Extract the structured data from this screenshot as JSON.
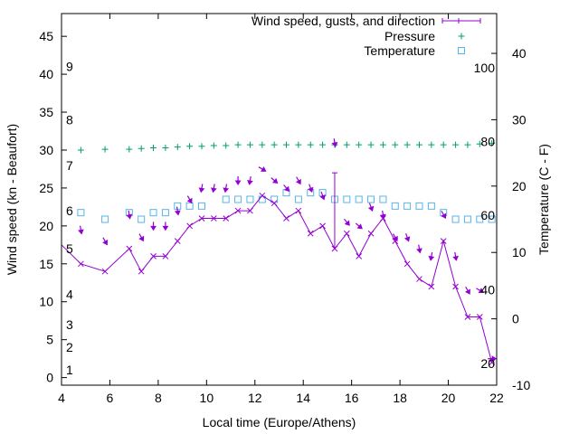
{
  "chart_data": {
    "type": "line",
    "xlabel": "Local time (Europe/Athens)",
    "ylabel_left": "Wind speed (kn - Beaufort)",
    "ylabel_right": "Temperature (C - F)",
    "xlim": [
      4,
      22
    ],
    "ylim_left": [
      -1,
      48
    ],
    "ylim_right": [
      -10,
      46
    ],
    "x_ticks": [
      "4",
      "6",
      "8",
      "10",
      "12",
      "14",
      "16",
      "18",
      "20",
      "22"
    ],
    "y_ticks_left": [
      "0",
      "5",
      "10",
      "15",
      "20",
      "25",
      "30",
      "35",
      "40",
      "45"
    ],
    "y_ticks_right": [
      "-10",
      "0",
      "10",
      "20",
      "30",
      "40"
    ],
    "beaufort_labels": [
      {
        "text": "1",
        "kn": 1
      },
      {
        "text": "2",
        "kn": 4
      },
      {
        "text": "3",
        "kn": 7
      },
      {
        "text": "4",
        "kn": 11
      },
      {
        "text": "5",
        "kn": 17
      },
      {
        "text": "6",
        "kn": 22
      },
      {
        "text": "7",
        "kn": 28
      },
      {
        "text": "8",
        "kn": 34
      },
      {
        "text": "9",
        "kn": 41
      }
    ],
    "fahrenheit_labels": [
      {
        "text": "20",
        "c": -6.7
      },
      {
        "text": "40",
        "c": 4.4
      },
      {
        "text": "60",
        "c": 15.6
      },
      {
        "text": "80",
        "c": 26.7
      },
      {
        "text": "100",
        "c": 37.8
      }
    ],
    "legend": [
      "Wind speed, gusts, and direction",
      "Pressure",
      "Temperature"
    ],
    "legend_position": "top-right",
    "colors": {
      "wind": "#9400d3",
      "pressure": "#009e73",
      "temperature": "#56b4e9"
    },
    "wind_speed": {
      "x": [
        4.0,
        4.8,
        5.8,
        6.8,
        7.3,
        7.8,
        8.3,
        8.8,
        9.3,
        9.8,
        10.3,
        10.8,
        11.3,
        11.8,
        12.3,
        12.8,
        13.3,
        13.8,
        14.3,
        14.8,
        15.3,
        15.8,
        16.3,
        16.8,
        17.3,
        17.8,
        18.3,
        18.8,
        19.3,
        19.8,
        20.3,
        20.8,
        21.3,
        21.8
      ],
      "y": [
        17.5,
        15,
        14,
        17,
        14,
        16,
        16,
        18,
        20,
        21,
        21,
        21,
        22,
        22,
        24,
        23,
        21,
        22,
        19,
        20,
        17,
        19,
        16,
        19,
        21,
        18,
        15,
        13,
        12,
        18,
        12,
        8,
        8,
        2
      ]
    },
    "gusts": [
      {
        "x": 15.3,
        "low": 17,
        "high": 27
      }
    ],
    "wind_direction": {
      "x": [
        4.8,
        5.8,
        6.8,
        7.3,
        7.8,
        8.3,
        8.8,
        9.3,
        9.8,
        10.3,
        10.8,
        11.3,
        11.8,
        12.3,
        12.8,
        13.3,
        13.8,
        14.3,
        14.8,
        15.3,
        15.8,
        16.3,
        16.8,
        17.3,
        17.8,
        18.3,
        18.8,
        19.3,
        19.8,
        20.3,
        20.8,
        21.3,
        21.8
      ],
      "y": [
        19.5,
        18,
        21.5,
        18.5,
        20,
        20,
        22,
        23.5,
        25,
        25,
        25,
        26,
        26,
        27.5,
        26,
        25,
        26,
        25,
        24,
        31,
        20.5,
        20,
        22.5,
        21.5,
        18.5,
        18.5,
        17,
        16,
        21.5,
        16,
        11.5,
        11.5,
        2.5
      ],
      "dir_deg": [
        350,
        330,
        350,
        330,
        360,
        360,
        350,
        330,
        10,
        10,
        10,
        360,
        10,
        300,
        310,
        320,
        330,
        340,
        340,
        350,
        320,
        310,
        340,
        350,
        330,
        340,
        350,
        10,
        330,
        350,
        330,
        300,
        270
      ]
    },
    "pressure": {
      "x": [
        4.8,
        5.8,
        6.8,
        7.3,
        7.8,
        8.3,
        8.8,
        9.3,
        9.8,
        10.3,
        10.8,
        11.3,
        11.8,
        12.3,
        12.8,
        13.3,
        13.8,
        14.3,
        14.8,
        15.3,
        15.8,
        16.3,
        16.8,
        17.3,
        17.8,
        18.3,
        18.8,
        19.3,
        19.8,
        20.3,
        20.8,
        21.3,
        21.8
      ],
      "y": [
        30.0,
        30.1,
        30.1,
        30.2,
        30.3,
        30.3,
        30.4,
        30.5,
        30.5,
        30.6,
        30.6,
        30.7,
        30.7,
        30.7,
        30.7,
        30.7,
        30.7,
        30.7,
        30.7,
        30.7,
        30.7,
        30.7,
        30.7,
        30.7,
        30.7,
        30.7,
        30.7,
        30.7,
        30.7,
        30.7,
        30.7,
        30.8,
        30.9
      ]
    },
    "temperature_c": {
      "x": [
        4.8,
        5.8,
        6.8,
        7.3,
        7.8,
        8.3,
        8.8,
        9.3,
        9.8,
        10.8,
        11.3,
        11.8,
        12.3,
        12.8,
        13.3,
        13.8,
        14.3,
        14.8,
        15.3,
        15.8,
        16.3,
        16.8,
        17.3,
        17.8,
        18.3,
        18.8,
        19.3,
        19.8,
        20.3,
        20.8,
        21.3,
        21.8
      ],
      "y": [
        16,
        15,
        16,
        15,
        16,
        16,
        17,
        17,
        17,
        18,
        18,
        18,
        18,
        18,
        19,
        18,
        19,
        19,
        18,
        18,
        18,
        18,
        18,
        17,
        17,
        17,
        17,
        16,
        15,
        15,
        15,
        15
      ]
    }
  }
}
